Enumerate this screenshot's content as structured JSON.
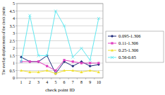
{
  "chart_data": {
    "type": "line",
    "x_label": "check point ID",
    "y_label": "The overlay displacements of the check points",
    "categories": [
      "1",
      "2",
      "3",
      "4",
      "5",
      "6",
      "7",
      "8",
      "9",
      "10"
    ],
    "series": [
      {
        "name": "0.095-1.306",
        "color": "#1f2a7a",
        "marker": "diamond",
        "values": [
          1.4,
          1.1,
          1.1,
          1.5,
          0.3,
          1.1,
          0.8,
          1.1,
          0.8,
          0.9
        ]
      },
      {
        "name": "0.11-1.306",
        "color": "#e040c0",
        "marker": "square",
        "values": [
          1.1,
          1.1,
          1.1,
          0.8,
          0.5,
          1.2,
          1.1,
          1.0,
          1.0,
          1.0
        ]
      },
      {
        "name": "0.25-1.306",
        "color": "#f0e030",
        "marker": "triangle",
        "values": [
          0.5,
          0.4,
          0.4,
          0.5,
          0.3,
          0.5,
          0.5,
          0.4,
          0.5,
          0.4
        ]
      },
      {
        "name": "0.56-0.65",
        "color": "#60e8f0",
        "marker": "x",
        "values": [
          1.1,
          4.2,
          1.5,
          1.5,
          4.5,
          3.5,
          1.4,
          2.0,
          1.2,
          4.0
        ]
      }
    ],
    "ylim": [
      0,
      5
    ],
    "yticks": [
      0,
      0.5,
      1,
      1.5,
      2,
      2.5,
      3,
      3.5,
      4,
      4.5,
      5
    ],
    "grid": true,
    "legend": "right"
  }
}
